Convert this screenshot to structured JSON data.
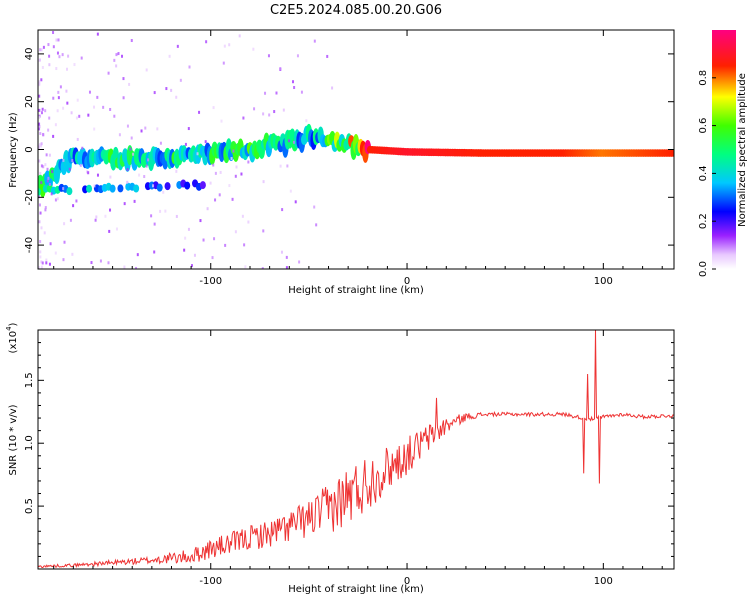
{
  "figure": {
    "title": "C2E5.2024.085.00.20.G06"
  },
  "chart_data": [
    {
      "type": "heatmap",
      "title": "C2E5.2024.085.00.20.G06",
      "xlabel": "Height of straight line (km)",
      "ylabel": "Frequency (Hz)",
      "xlim": [
        -188,
        136
      ],
      "ylim": [
        -50,
        50
      ],
      "x_ticks": [
        -100,
        0,
        100
      ],
      "y_ticks": [
        -40,
        -20,
        0,
        20,
        40
      ],
      "colorbar": {
        "label": "Normalized spectral amplitude",
        "range": [
          0,
          1
        ],
        "ticks": [
          0.0,
          0.2,
          0.4,
          0.6,
          0.8
        ],
        "colors": [
          "#ffffff",
          "#e0b0ff",
          "#8800ff",
          "#0000ff",
          "#00ffff",
          "#00ff00",
          "#ffff00",
          "#ff0000",
          "#ff0080"
        ]
      },
      "ridge": {
        "description_points_x": [
          -188,
          -170,
          -150,
          -120,
          -100,
          -80,
          -60,
          -45,
          -35,
          -20,
          0,
          40,
          80,
          100,
          136
        ],
        "frequency_hz": [
          -17,
          -3,
          -4,
          -3,
          -2,
          0,
          3,
          6,
          3,
          0,
          -1,
          -1.5,
          -1.5,
          -1.5,
          -1.5
        ],
        "amplitude": [
          0.5,
          0.4,
          0.45,
          0.45,
          0.45,
          0.5,
          0.45,
          0.4,
          0.6,
          0.85,
          0.9,
          0.85,
          0.85,
          0.8,
          0.85
        ]
      },
      "secondary_ridge": {
        "x": [
          -188,
          -175,
          -165,
          -150,
          -130,
          -110,
          -100
        ],
        "frequency_hz": [
          -17,
          -17,
          -16,
          -16,
          -15,
          -15,
          -15
        ],
        "amplitude": [
          0.45,
          0.35,
          0.35,
          0.3,
          0.3,
          0.25,
          0.25
        ]
      }
    },
    {
      "type": "line",
      "xlabel": "Height of straight line (km)",
      "ylabel": "SNR (10 * v/v)",
      "y_multiplier": "(x10",
      "y_multiplier_exp": "4",
      "y_multiplier_close": ")",
      "xlim": [
        -188,
        136
      ],
      "ylim": [
        0,
        19000
      ],
      "x_ticks": [
        -100,
        0,
        100
      ],
      "y_ticks": [
        5000,
        10000,
        15000
      ],
      "y_tick_labels": [
        "0.5",
        "1.0",
        "1.5"
      ],
      "line_color": "#ee3333",
      "series": [
        {
          "x": [
            -188,
            -170,
            -150,
            -130,
            -110,
            -100,
            -90,
            -80,
            -70,
            -60,
            -50,
            -40,
            -30,
            -20,
            -10,
            0,
            10,
            20,
            30,
            40,
            60,
            80,
            90,
            95,
            100,
            110,
            120,
            136
          ],
          "y": [
            200,
            300,
            500,
            700,
            1000,
            1600,
            2000,
            2500,
            2800,
            3400,
            4000,
            4800,
            5800,
            6900,
            8000,
            9000,
            10300,
            11400,
            12100,
            12300,
            12300,
            12300,
            12000,
            11900,
            12100,
            12300,
            12100,
            12200
          ],
          "noise_amplitude": [
            100,
            120,
            200,
            300,
            600,
            800,
            900,
            1000,
            1100,
            1300,
            1500,
            2000,
            2500,
            2300,
            1800,
            1500,
            1200,
            700,
            300,
            150,
            150,
            150,
            150,
            150,
            150,
            150,
            150,
            150
          ]
        }
      ],
      "spikes": [
        {
          "x": 90,
          "y": 7600
        },
        {
          "x": 92,
          "y": 15500
        },
        {
          "x": 96,
          "y": 19000
        },
        {
          "x": 98,
          "y": 6800
        },
        {
          "x": 15,
          "y": 13600
        }
      ]
    }
  ]
}
